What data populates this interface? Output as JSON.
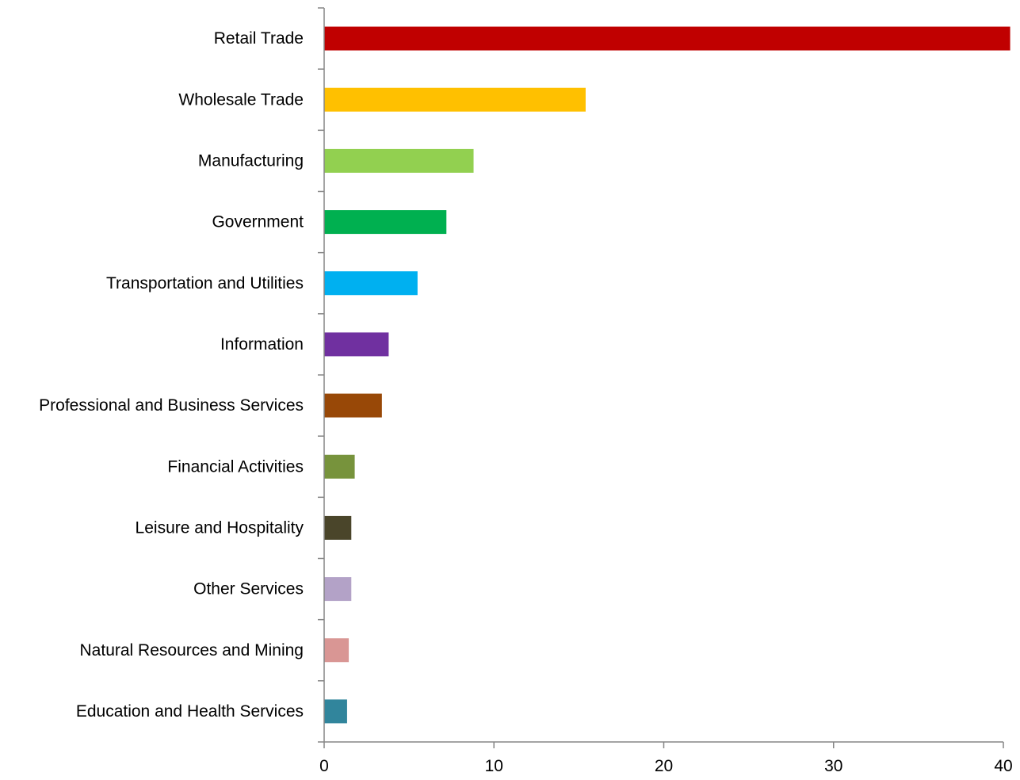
{
  "chart_data": {
    "type": "bar",
    "orientation": "horizontal",
    "title": "",
    "xlabel": "",
    "ylabel": "",
    "xlim": [
      0,
      40
    ],
    "x_ticks": [
      0,
      10,
      20,
      30,
      40
    ],
    "grid": false,
    "legend": "none",
    "categories": [
      "Retail Trade",
      "Wholesale Trade",
      "Manufacturing",
      "Government",
      "Transportation and Utilities",
      "Information",
      "Professional and Business Services",
      "Financial Activities",
      "Leisure and Hospitality",
      "Other Services",
      "Natural Resources and Mining",
      "Education and Health Services"
    ],
    "values": [
      40.4,
      15.4,
      8.8,
      7.2,
      5.5,
      3.8,
      3.4,
      1.8,
      1.6,
      1.6,
      1.45,
      1.35
    ],
    "colors": [
      "#C00000",
      "#FFC000",
      "#92D050",
      "#00B050",
      "#00B0F0",
      "#7030A0",
      "#984807",
      "#77933C",
      "#4A452A",
      "#B3A2C7",
      "#D99694",
      "#31859C"
    ]
  }
}
